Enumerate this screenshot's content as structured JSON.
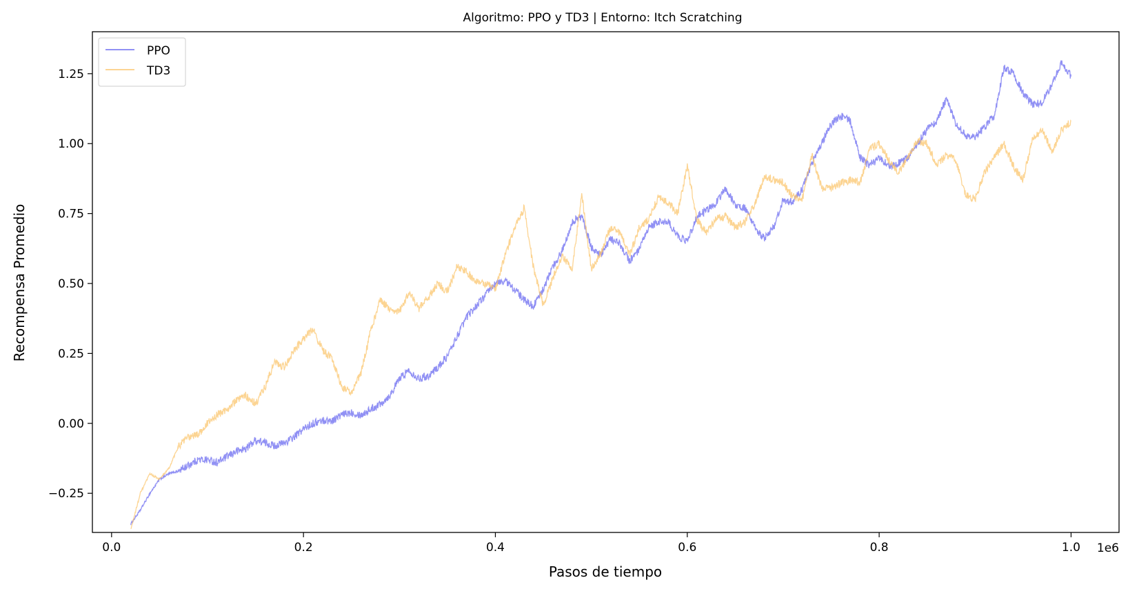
{
  "chart_data": {
    "type": "line",
    "title": "Algoritmo: PPO y TD3 | Entorno: Itch Scratching",
    "xlabel": "Pasos de tiempo",
    "ylabel": "Recompensa Promedio",
    "x_offset_label": "1e6",
    "xlim": [
      -20000,
      1050000
    ],
    "ylim": [
      -0.39,
      1.4
    ],
    "x_ticks": [
      0,
      200000,
      400000,
      600000,
      800000,
      1000000
    ],
    "x_tick_labels": [
      "0.0",
      "0.2",
      "0.4",
      "0.6",
      "0.8",
      "1.0"
    ],
    "y_ticks": [
      -0.25,
      0.0,
      0.25,
      0.5,
      0.75,
      1.0,
      1.25
    ],
    "y_tick_labels": [
      "−0.25",
      "0.00",
      "0.25",
      "0.50",
      "0.75",
      "1.00",
      "1.25"
    ],
    "legend_position": "top-left",
    "grid": false,
    "series": [
      {
        "name": "PPO",
        "color": "#6b6bf0",
        "x": [
          20000,
          30000,
          40000,
          50000,
          60000,
          70000,
          80000,
          90000,
          100000,
          110000,
          120000,
          130000,
          140000,
          150000,
          160000,
          170000,
          180000,
          190000,
          200000,
          210000,
          220000,
          230000,
          240000,
          250000,
          260000,
          270000,
          280000,
          290000,
          300000,
          310000,
          320000,
          330000,
          340000,
          350000,
          360000,
          370000,
          380000,
          390000,
          400000,
          410000,
          420000,
          430000,
          440000,
          450000,
          460000,
          470000,
          480000,
          490000,
          500000,
          510000,
          520000,
          530000,
          540000,
          550000,
          560000,
          570000,
          580000,
          590000,
          600000,
          610000,
          620000,
          630000,
          640000,
          650000,
          660000,
          670000,
          680000,
          690000,
          700000,
          710000,
          720000,
          730000,
          740000,
          750000,
          760000,
          770000,
          780000,
          790000,
          800000,
          810000,
          820000,
          830000,
          840000,
          850000,
          860000,
          870000,
          880000,
          890000,
          900000,
          910000,
          920000,
          930000,
          940000,
          950000,
          960000,
          970000,
          980000,
          990000,
          1000000
        ],
        "values": [
          -0.36,
          -0.31,
          -0.25,
          -0.2,
          -0.18,
          -0.17,
          -0.15,
          -0.13,
          -0.13,
          -0.14,
          -0.12,
          -0.1,
          -0.09,
          -0.06,
          -0.07,
          -0.08,
          -0.07,
          -0.05,
          -0.02,
          0.0,
          0.01,
          0.01,
          0.03,
          0.04,
          0.03,
          0.05,
          0.07,
          0.1,
          0.16,
          0.19,
          0.16,
          0.17,
          0.2,
          0.24,
          0.31,
          0.38,
          0.42,
          0.46,
          0.5,
          0.51,
          0.48,
          0.44,
          0.42,
          0.48,
          0.56,
          0.62,
          0.72,
          0.74,
          0.63,
          0.6,
          0.66,
          0.64,
          0.58,
          0.62,
          0.7,
          0.72,
          0.72,
          0.67,
          0.65,
          0.74,
          0.76,
          0.79,
          0.84,
          0.78,
          0.77,
          0.7,
          0.66,
          0.7,
          0.8,
          0.79,
          0.84,
          0.93,
          1.0,
          1.07,
          1.1,
          1.08,
          0.95,
          0.92,
          0.95,
          0.92,
          0.93,
          0.95,
          1.0,
          1.05,
          1.08,
          1.16,
          1.07,
          1.03,
          1.02,
          1.06,
          1.1,
          1.27,
          1.25,
          1.18,
          1.14,
          1.15,
          1.21,
          1.29,
          1.24
        ]
      },
      {
        "name": "TD3",
        "color": "#fbc56e",
        "x": [
          20000,
          30000,
          40000,
          50000,
          60000,
          70000,
          80000,
          90000,
          100000,
          110000,
          120000,
          130000,
          140000,
          150000,
          160000,
          170000,
          180000,
          190000,
          200000,
          210000,
          220000,
          230000,
          240000,
          250000,
          260000,
          270000,
          280000,
          290000,
          300000,
          310000,
          320000,
          330000,
          340000,
          350000,
          360000,
          370000,
          380000,
          390000,
          400000,
          410000,
          420000,
          430000,
          440000,
          450000,
          460000,
          470000,
          480000,
          490000,
          500000,
          510000,
          520000,
          530000,
          540000,
          550000,
          560000,
          570000,
          580000,
          590000,
          600000,
          610000,
          620000,
          630000,
          640000,
          650000,
          660000,
          670000,
          680000,
          690000,
          700000,
          710000,
          720000,
          730000,
          740000,
          750000,
          760000,
          770000,
          780000,
          790000,
          800000,
          810000,
          820000,
          830000,
          840000,
          850000,
          860000,
          870000,
          880000,
          890000,
          900000,
          910000,
          920000,
          930000,
          940000,
          950000,
          960000,
          970000,
          980000,
          990000,
          1000000
        ],
        "values": [
          -0.38,
          -0.25,
          -0.18,
          -0.2,
          -0.16,
          -0.08,
          -0.05,
          -0.04,
          0.0,
          0.03,
          0.05,
          0.08,
          0.1,
          0.07,
          0.13,
          0.22,
          0.2,
          0.26,
          0.3,
          0.34,
          0.26,
          0.23,
          0.13,
          0.11,
          0.18,
          0.33,
          0.44,
          0.41,
          0.4,
          0.47,
          0.41,
          0.45,
          0.5,
          0.47,
          0.56,
          0.54,
          0.51,
          0.5,
          0.48,
          0.6,
          0.7,
          0.77,
          0.55,
          0.42,
          0.52,
          0.6,
          0.55,
          0.82,
          0.55,
          0.61,
          0.7,
          0.68,
          0.6,
          0.7,
          0.73,
          0.81,
          0.79,
          0.75,
          0.92,
          0.73,
          0.68,
          0.73,
          0.74,
          0.7,
          0.72,
          0.78,
          0.88,
          0.87,
          0.86,
          0.81,
          0.8,
          0.96,
          0.84,
          0.84,
          0.86,
          0.87,
          0.86,
          0.98,
          1.0,
          0.94,
          0.9,
          0.95,
          1.01,
          1.0,
          0.92,
          0.96,
          0.94,
          0.82,
          0.8,
          0.9,
          0.95,
          1.0,
          0.92,
          0.87,
          1.02,
          1.05,
          0.97,
          1.05,
          1.08
        ]
      }
    ]
  }
}
